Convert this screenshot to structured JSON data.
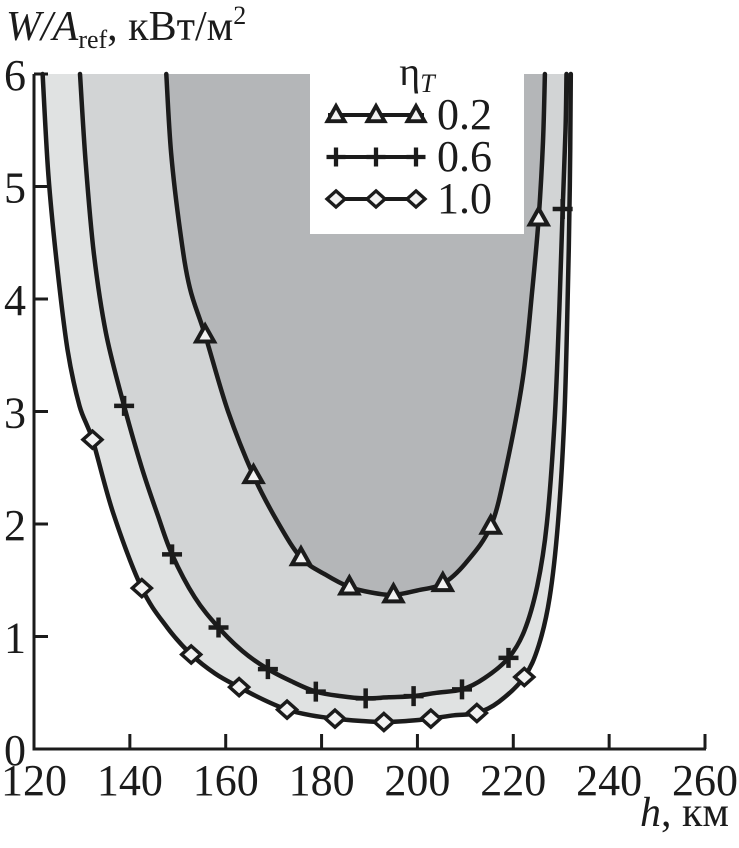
{
  "figure": {
    "background": "#ffffff",
    "ink": "#1b1b1b"
  },
  "axes": {
    "y_title": {
      "italic": "W/A",
      "sub": "ref",
      "rest": ", кВт/м",
      "sup": "2"
    },
    "x_title": {
      "italic": "h",
      "rest": ", км"
    },
    "x_ticks": [
      120,
      140,
      160,
      180,
      200,
      220,
      240,
      260
    ],
    "y_ticks": [
      0,
      1,
      2,
      3,
      4,
      5,
      6
    ]
  },
  "legend": {
    "title_symbol": "η",
    "title_sub": "T"
  },
  "chart_data": {
    "type": "line",
    "title": "",
    "xlabel": "h, км",
    "ylabel": "W/A_ref, кВт/м²",
    "xlim": [
      120,
      260
    ],
    "ylim": [
      0,
      6
    ],
    "grid": false,
    "legend_title": "η_T",
    "legend_position": "inside-top",
    "note": "Three nested bathtub-shaped curves; region above each curve is shaded, darker toward the innermost (η_T = 0.2) region.",
    "series": [
      {
        "name": "0.2",
        "marker": "triangle",
        "region_fill": "#b4b6b8",
        "points": [
          [
            147.6,
            6
          ],
          [
            148.6,
            5.3
          ],
          [
            150.5,
            4.6
          ],
          [
            152.5,
            4.1
          ],
          [
            155.7,
            3.68
          ],
          [
            160.5,
            3.0
          ],
          [
            165.8,
            2.43
          ],
          [
            170.8,
            2.02
          ],
          [
            175.7,
            1.7
          ],
          [
            180.8,
            1.55
          ],
          [
            185.8,
            1.44
          ],
          [
            190.5,
            1.39
          ],
          [
            195,
            1.37
          ],
          [
            200,
            1.41
          ],
          [
            205.3,
            1.47
          ],
          [
            210,
            1.65
          ],
          [
            215.3,
            1.98
          ],
          [
            218.5,
            2.5
          ],
          [
            222,
            3.3
          ],
          [
            224,
            4.1
          ],
          [
            225.3,
            4.72
          ],
          [
            226.2,
            5.4
          ],
          [
            226.6,
            6
          ]
        ],
        "markers": [
          [
            155.7,
            3.68
          ],
          [
            165.8,
            2.43
          ],
          [
            175.7,
            1.7
          ],
          [
            185.8,
            1.44
          ],
          [
            195,
            1.37
          ],
          [
            205.3,
            1.47
          ],
          [
            215.3,
            1.98
          ],
          [
            225.3,
            4.72
          ]
        ]
      },
      {
        "name": "0.6",
        "marker": "plus",
        "region_fill": "#d2d4d5",
        "points": [
          [
            129.6,
            6
          ],
          [
            130.8,
            5.2
          ],
          [
            132.5,
            4.4
          ],
          [
            135,
            3.7
          ],
          [
            138.8,
            3.05
          ],
          [
            142.5,
            2.5
          ],
          [
            145.8,
            2.08
          ],
          [
            148.8,
            1.73
          ],
          [
            153.5,
            1.35
          ],
          [
            158.5,
            1.08
          ],
          [
            163.5,
            0.87
          ],
          [
            168.8,
            0.71
          ],
          [
            173.8,
            0.6
          ],
          [
            178.8,
            0.51
          ],
          [
            184,
            0.47
          ],
          [
            189.2,
            0.45
          ],
          [
            194,
            0.46
          ],
          [
            199.2,
            0.47
          ],
          [
            204,
            0.5
          ],
          [
            209.3,
            0.53
          ],
          [
            214,
            0.63
          ],
          [
            219,
            0.81
          ],
          [
            222.3,
            1.05
          ],
          [
            225,
            1.45
          ],
          [
            227,
            2.0
          ],
          [
            228.6,
            2.9
          ],
          [
            229.6,
            3.9
          ],
          [
            230.3,
            4.8
          ],
          [
            230.9,
            5.5
          ],
          [
            231.1,
            6
          ]
        ],
        "markers": [
          [
            138.8,
            3.05
          ],
          [
            148.8,
            1.73
          ],
          [
            158.5,
            1.08
          ],
          [
            168.8,
            0.71
          ],
          [
            178.8,
            0.51
          ],
          [
            189.2,
            0.45
          ],
          [
            199.2,
            0.47
          ],
          [
            209.3,
            0.53
          ],
          [
            219,
            0.81
          ],
          [
            230.3,
            4.8
          ]
        ]
      },
      {
        "name": "1.0",
        "marker": "diamond",
        "region_fill": "#e0e2e2",
        "points": [
          [
            121.8,
            6
          ],
          [
            123,
            5.1
          ],
          [
            124.8,
            4.3
          ],
          [
            127,
            3.55
          ],
          [
            129.5,
            3.05
          ],
          [
            132.2,
            2.75
          ],
          [
            136.5,
            2.1
          ],
          [
            142.5,
            1.43
          ],
          [
            147.8,
            1.08
          ],
          [
            152.8,
            0.84
          ],
          [
            157.8,
            0.67
          ],
          [
            162.8,
            0.55
          ],
          [
            167.8,
            0.44
          ],
          [
            172.8,
            0.35
          ],
          [
            177.8,
            0.3
          ],
          [
            182.8,
            0.27
          ],
          [
            188,
            0.25
          ],
          [
            193,
            0.24
          ],
          [
            198,
            0.25
          ],
          [
            202.8,
            0.27
          ],
          [
            207.6,
            0.3
          ],
          [
            212.4,
            0.32
          ],
          [
            217,
            0.42
          ],
          [
            222.3,
            0.64
          ],
          [
            225.3,
            0.92
          ],
          [
            227.6,
            1.35
          ],
          [
            229.3,
            2.0
          ],
          [
            230.6,
            2.9
          ],
          [
            231.3,
            3.9
          ],
          [
            231.8,
            5.0
          ],
          [
            232,
            6
          ]
        ],
        "markers": [
          [
            132.2,
            2.75
          ],
          [
            142.5,
            1.43
          ],
          [
            152.8,
            0.84
          ],
          [
            162.8,
            0.55
          ],
          [
            172.8,
            0.35
          ],
          [
            182.8,
            0.27
          ],
          [
            193,
            0.24
          ],
          [
            202.8,
            0.27
          ],
          [
            212.4,
            0.32
          ],
          [
            222.3,
            0.64
          ]
        ]
      }
    ]
  }
}
